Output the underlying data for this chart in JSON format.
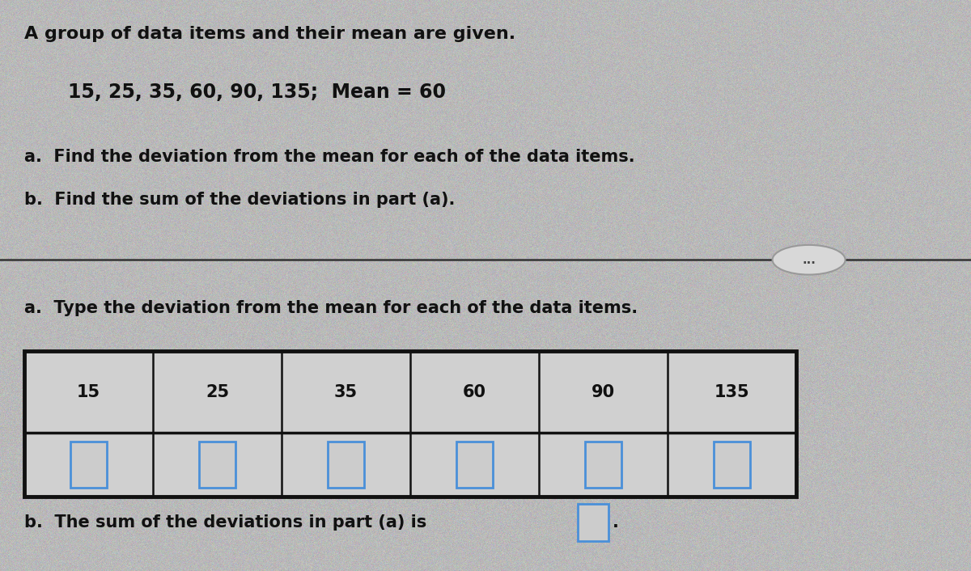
{
  "bg_color": "#b8b8b8",
  "title_text": "A group of data items and their mean are given.",
  "data_line": "15, 25, 35, 60, 90, 135;  Mean = 60",
  "instruction_a": "a.  Find the deviation from the mean for each of the data items.",
  "instruction_b": "b.  Find the sum of the deviations in part (a).",
  "answer_a_label": "a.  Type the deviation from the mean for each of the data items.",
  "answer_b_label": "b.  The sum of the deviations in part (a) is",
  "data_values": [
    15,
    25,
    35,
    60,
    90,
    135
  ],
  "ellipse_text": "...",
  "table_outer_color": "#111111",
  "table_inner_box_color": "#4a90d9",
  "answer_box_color": "#4a90d9",
  "text_color": "#111111"
}
